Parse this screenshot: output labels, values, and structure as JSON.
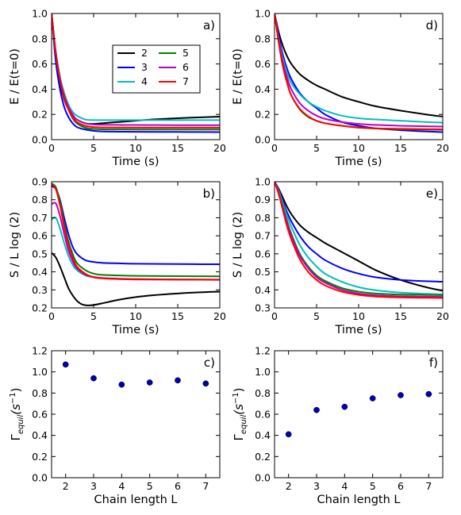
{
  "chart_data": [
    {
      "id": "a",
      "type": "line",
      "panel_label": "a)",
      "xlabel": "Time (s)",
      "ylabel": "E / E(t=0)",
      "xlim": [
        0,
        20
      ],
      "ylim": [
        0,
        1.0
      ],
      "xticks": [
        0,
        5,
        10,
        15,
        20
      ],
      "yticks": [
        0.0,
        0.2,
        0.4,
        0.6,
        0.8,
        1.0
      ],
      "ytick_decimals": 1,
      "legend": {
        "placement": "upper-center",
        "columns": 2
      },
      "series": [
        {
          "name": "2",
          "color": "#000000",
          "x": [
            0,
            0.5,
            1,
            1.5,
            2,
            2.5,
            3,
            4,
            5,
            6,
            8,
            10,
            12,
            15,
            18,
            20
          ],
          "y": [
            1.0,
            0.66,
            0.45,
            0.32,
            0.24,
            0.19,
            0.16,
            0.13,
            0.125,
            0.13,
            0.14,
            0.15,
            0.16,
            0.17,
            0.178,
            0.182
          ]
        },
        {
          "name": "3",
          "color": "#0000ff",
          "x": [
            0,
            0.5,
            1,
            1.5,
            2,
            2.5,
            3,
            4,
            5,
            6,
            8,
            10,
            15,
            20
          ],
          "y": [
            1.0,
            0.62,
            0.4,
            0.26,
            0.18,
            0.13,
            0.1,
            0.08,
            0.07,
            0.065,
            0.063,
            0.062,
            0.061,
            0.06
          ]
        },
        {
          "name": "4",
          "color": "#00bfbf",
          "x": [
            0,
            0.5,
            1,
            1.5,
            2,
            2.5,
            3,
            4,
            5,
            6,
            8,
            10,
            15,
            20
          ],
          "y": [
            1.0,
            0.7,
            0.5,
            0.37,
            0.28,
            0.22,
            0.19,
            0.16,
            0.155,
            0.155,
            0.155,
            0.155,
            0.155,
            0.155
          ]
        },
        {
          "name": "5",
          "color": "#008000",
          "x": [
            0,
            0.5,
            1,
            1.5,
            2,
            2.5,
            3,
            4,
            5,
            6,
            8,
            10,
            15,
            20
          ],
          "y": [
            1.0,
            0.68,
            0.47,
            0.33,
            0.24,
            0.17,
            0.13,
            0.095,
            0.085,
            0.082,
            0.081,
            0.08,
            0.08,
            0.08
          ]
        },
        {
          "name": "6",
          "color": "#bf00bf",
          "x": [
            0,
            0.5,
            1,
            1.5,
            2,
            2.5,
            3,
            4,
            5,
            6,
            8,
            10,
            15,
            20
          ],
          "y": [
            1.0,
            0.69,
            0.48,
            0.35,
            0.26,
            0.2,
            0.16,
            0.13,
            0.12,
            0.118,
            0.117,
            0.116,
            0.115,
            0.115
          ]
        },
        {
          "name": "7",
          "color": "#ff0000",
          "x": [
            0,
            0.5,
            1,
            1.5,
            2,
            2.5,
            3,
            4,
            5,
            6,
            8,
            10,
            15,
            20
          ],
          "y": [
            1.0,
            0.68,
            0.47,
            0.33,
            0.24,
            0.18,
            0.14,
            0.11,
            0.1,
            0.097,
            0.096,
            0.095,
            0.095,
            0.095
          ]
        }
      ]
    },
    {
      "id": "b",
      "type": "line",
      "panel_label": "b)",
      "xlabel": "Time (s)",
      "ylabel": "S / L log (2)",
      "xlim": [
        0,
        20
      ],
      "ylim": [
        0.2,
        0.9
      ],
      "xticks": [
        0,
        5,
        10,
        15,
        20
      ],
      "yticks": [
        0.2,
        0.3,
        0.4,
        0.5,
        0.6,
        0.7,
        0.8,
        0.9
      ],
      "ytick_decimals": 1,
      "series": [
        {
          "name": "2",
          "color": "#000000",
          "x": [
            0,
            0.5,
            1,
            1.5,
            2,
            2.5,
            3,
            3.5,
            4,
            4.5,
            5,
            6,
            8,
            10,
            12,
            15,
            18,
            20
          ],
          "y": [
            0.505,
            0.48,
            0.43,
            0.37,
            0.31,
            0.27,
            0.24,
            0.222,
            0.215,
            0.214,
            0.216,
            0.225,
            0.245,
            0.26,
            0.27,
            0.28,
            0.287,
            0.29
          ]
        },
        {
          "name": "3",
          "color": "#0000ff",
          "x": [
            0,
            0.5,
            1,
            1.5,
            2,
            2.5,
            3,
            4,
            5,
            6,
            8,
            10,
            15,
            20
          ],
          "y": [
            0.875,
            0.86,
            0.8,
            0.7,
            0.61,
            0.54,
            0.5,
            0.465,
            0.455,
            0.45,
            0.447,
            0.445,
            0.443,
            0.442
          ]
        },
        {
          "name": "4",
          "color": "#00bfbf",
          "x": [
            0,
            0.5,
            1,
            1.5,
            2,
            2.5,
            3,
            4,
            5,
            6,
            8,
            10,
            15,
            20
          ],
          "y": [
            0.69,
            0.7,
            0.64,
            0.56,
            0.49,
            0.44,
            0.41,
            0.38,
            0.37,
            0.365,
            0.36,
            0.358,
            0.357,
            0.356
          ]
        },
        {
          "name": "5",
          "color": "#008000",
          "x": [
            0,
            0.5,
            1,
            1.5,
            2,
            2.5,
            3,
            4,
            5,
            6,
            8,
            10,
            15,
            20
          ],
          "y": [
            0.89,
            0.87,
            0.79,
            0.67,
            0.57,
            0.5,
            0.45,
            0.41,
            0.39,
            0.383,
            0.38,
            0.378,
            0.376,
            0.375
          ]
        },
        {
          "name": "6",
          "color": "#bf00bf",
          "x": [
            0,
            0.5,
            1,
            1.5,
            2,
            2.5,
            3,
            4,
            5,
            6,
            8,
            10,
            15,
            20
          ],
          "y": [
            0.775,
            0.78,
            0.71,
            0.61,
            0.52,
            0.46,
            0.42,
            0.385,
            0.372,
            0.366,
            0.362,
            0.36,
            0.358,
            0.357
          ]
        },
        {
          "name": "7",
          "color": "#ff0000",
          "x": [
            0,
            0.5,
            1,
            1.5,
            2,
            2.5,
            3,
            4,
            5,
            6,
            8,
            10,
            15,
            20
          ],
          "y": [
            0.885,
            0.86,
            0.77,
            0.65,
            0.55,
            0.48,
            0.43,
            0.39,
            0.37,
            0.364,
            0.36,
            0.358,
            0.357,
            0.356
          ]
        }
      ]
    },
    {
      "id": "c",
      "type": "scatter",
      "panel_label": "c)",
      "xlabel": "Chain length L",
      "ylabel": "Γequil(s−1)",
      "ylabel_main": "Γ",
      "ylabel_sub": "equil",
      "ylabel_paren": "(s",
      "ylabel_sup": "−1",
      "ylabel_close": ")",
      "xlim": [
        1.5,
        7.5
      ],
      "ylim": [
        0.0,
        1.2
      ],
      "xticks": [
        2,
        3,
        4,
        5,
        6,
        7
      ],
      "yticks": [
        0.0,
        0.2,
        0.4,
        0.6,
        0.8,
        1.0,
        1.2
      ],
      "ytick_decimals": 1,
      "point_color": "#0000aa",
      "x": [
        2,
        3,
        4,
        5,
        6,
        7
      ],
      "y": [
        1.07,
        0.94,
        0.88,
        0.9,
        0.92,
        0.89
      ]
    },
    {
      "id": "d",
      "type": "line",
      "panel_label": "d)",
      "xlabel": "Time (s)",
      "ylabel": "E / E(t=0)",
      "xlim": [
        0,
        20
      ],
      "ylim": [
        0,
        1.0
      ],
      "xticks": [
        0,
        5,
        10,
        15,
        20
      ],
      "yticks": [
        0.0,
        0.2,
        0.4,
        0.6,
        0.8,
        1.0
      ],
      "ytick_decimals": 1,
      "series": [
        {
          "name": "2",
          "color": "#000000",
          "x": [
            0,
            0.5,
            1,
            1.5,
            2,
            3,
            4,
            5,
            6,
            8,
            10,
            12,
            15,
            18,
            20
          ],
          "y": [
            1.0,
            0.85,
            0.74,
            0.66,
            0.6,
            0.52,
            0.47,
            0.43,
            0.4,
            0.34,
            0.3,
            0.265,
            0.23,
            0.2,
            0.183
          ]
        },
        {
          "name": "3",
          "color": "#0000ff",
          "x": [
            0,
            0.5,
            1,
            1.5,
            2,
            3,
            4,
            5,
            6,
            8,
            10,
            12,
            15,
            18,
            20
          ],
          "y": [
            1.0,
            0.82,
            0.67,
            0.56,
            0.48,
            0.37,
            0.3,
            0.25,
            0.2,
            0.14,
            0.11,
            0.09,
            0.075,
            0.065,
            0.06
          ]
        },
        {
          "name": "4",
          "color": "#00bfbf",
          "x": [
            0,
            0.5,
            1,
            1.5,
            2,
            3,
            4,
            5,
            6,
            8,
            10,
            12,
            15,
            18,
            20
          ],
          "y": [
            1.0,
            0.8,
            0.64,
            0.53,
            0.45,
            0.36,
            0.3,
            0.26,
            0.23,
            0.19,
            0.17,
            0.16,
            0.15,
            0.14,
            0.135
          ]
        },
        {
          "name": "5",
          "color": "#008000",
          "x": [
            0,
            0.5,
            1,
            1.5,
            2,
            3,
            4,
            5,
            6,
            8,
            10,
            12,
            15,
            18,
            20
          ],
          "y": [
            1.0,
            0.77,
            0.58,
            0.45,
            0.35,
            0.24,
            0.18,
            0.15,
            0.13,
            0.11,
            0.095,
            0.088,
            0.082,
            0.08,
            0.079
          ]
        },
        {
          "name": "6",
          "color": "#bf00bf",
          "x": [
            0,
            0.5,
            1,
            1.5,
            2,
            3,
            4,
            5,
            6,
            8,
            10,
            12,
            15,
            18,
            20
          ],
          "y": [
            1.0,
            0.79,
            0.61,
            0.49,
            0.4,
            0.29,
            0.23,
            0.19,
            0.165,
            0.14,
            0.125,
            0.117,
            0.11,
            0.106,
            0.104
          ]
        },
        {
          "name": "7",
          "color": "#ff0000",
          "x": [
            0,
            0.5,
            1,
            1.5,
            2,
            3,
            4,
            5,
            6,
            8,
            10,
            12,
            15,
            18,
            20
          ],
          "y": [
            1.0,
            0.77,
            0.58,
            0.45,
            0.35,
            0.245,
            0.185,
            0.15,
            0.13,
            0.11,
            0.097,
            0.09,
            0.086,
            0.083,
            0.082
          ]
        }
      ]
    },
    {
      "id": "e",
      "type": "line",
      "panel_label": "e)",
      "xlabel": "Time (s)",
      "ylabel": "S / L log (2)",
      "xlim": [
        0,
        20
      ],
      "ylim": [
        0.3,
        1.0
      ],
      "xticks": [
        0,
        5,
        10,
        15,
        20
      ],
      "yticks": [
        0.3,
        0.4,
        0.5,
        0.6,
        0.7,
        0.8,
        0.9,
        1.0
      ],
      "ytick_decimals": 1,
      "series": [
        {
          "name": "2",
          "color": "#000000",
          "x": [
            0,
            0.5,
            1,
            1.5,
            2,
            3,
            4,
            5,
            6,
            8,
            10,
            12,
            15,
            18,
            20
          ],
          "y": [
            1.0,
            0.96,
            0.91,
            0.86,
            0.82,
            0.76,
            0.72,
            0.69,
            0.66,
            0.61,
            0.56,
            0.51,
            0.455,
            0.415,
            0.395
          ]
        },
        {
          "name": "3",
          "color": "#0000ff",
          "x": [
            0,
            0.5,
            1,
            1.5,
            2,
            3,
            4,
            5,
            6,
            8,
            10,
            12,
            15,
            18,
            20
          ],
          "y": [
            1.0,
            0.95,
            0.89,
            0.83,
            0.78,
            0.7,
            0.64,
            0.6,
            0.565,
            0.52,
            0.49,
            0.47,
            0.455,
            0.448,
            0.445
          ]
        },
        {
          "name": "4",
          "color": "#00bfbf",
          "x": [
            0,
            0.5,
            1,
            1.5,
            2,
            3,
            4,
            5,
            6,
            8,
            10,
            12,
            15,
            18,
            20
          ],
          "y": [
            1.0,
            0.95,
            0.88,
            0.81,
            0.75,
            0.65,
            0.58,
            0.53,
            0.49,
            0.445,
            0.415,
            0.398,
            0.385,
            0.378,
            0.375
          ]
        },
        {
          "name": "5",
          "color": "#008000",
          "x": [
            0,
            0.5,
            1,
            1.5,
            2,
            3,
            4,
            5,
            6,
            8,
            10,
            12,
            15,
            18,
            20
          ],
          "y": [
            1.0,
            0.94,
            0.86,
            0.78,
            0.71,
            0.6,
            0.53,
            0.48,
            0.45,
            0.41,
            0.39,
            0.38,
            0.374,
            0.372,
            0.371
          ]
        },
        {
          "name": "6",
          "color": "#bf00bf",
          "x": [
            0,
            0.5,
            1,
            1.5,
            2,
            3,
            4,
            5,
            6,
            8,
            10,
            12,
            15,
            18,
            20
          ],
          "y": [
            1.0,
            0.94,
            0.85,
            0.77,
            0.7,
            0.59,
            0.52,
            0.47,
            0.44,
            0.4,
            0.38,
            0.37,
            0.364,
            0.362,
            0.361
          ]
        },
        {
          "name": "7",
          "color": "#ff0000",
          "x": [
            0,
            0.5,
            1,
            1.5,
            2,
            3,
            4,
            5,
            6,
            8,
            10,
            12,
            15,
            18,
            20
          ],
          "y": [
            1.0,
            0.93,
            0.84,
            0.75,
            0.68,
            0.57,
            0.5,
            0.455,
            0.425,
            0.39,
            0.372,
            0.363,
            0.358,
            0.356,
            0.355
          ]
        }
      ]
    },
    {
      "id": "f",
      "type": "scatter",
      "panel_label": "f)",
      "xlabel": "Chain length L",
      "ylabel": "Γequil(s−1)",
      "ylabel_main": "Γ",
      "ylabel_sub": "equil",
      "ylabel_paren": "(s",
      "ylabel_sup": "−1",
      "ylabel_close": ")",
      "xlim": [
        1.5,
        7.5
      ],
      "ylim": [
        0.0,
        1.2
      ],
      "xticks": [
        2,
        3,
        4,
        5,
        6,
        7
      ],
      "yticks": [
        0.0,
        0.2,
        0.4,
        0.6,
        0.8,
        1.0,
        1.2
      ],
      "ytick_decimals": 1,
      "point_color": "#0000aa",
      "x": [
        2,
        3,
        4,
        5,
        6,
        7
      ],
      "y": [
        0.41,
        0.64,
        0.67,
        0.75,
        0.78,
        0.79
      ]
    }
  ]
}
